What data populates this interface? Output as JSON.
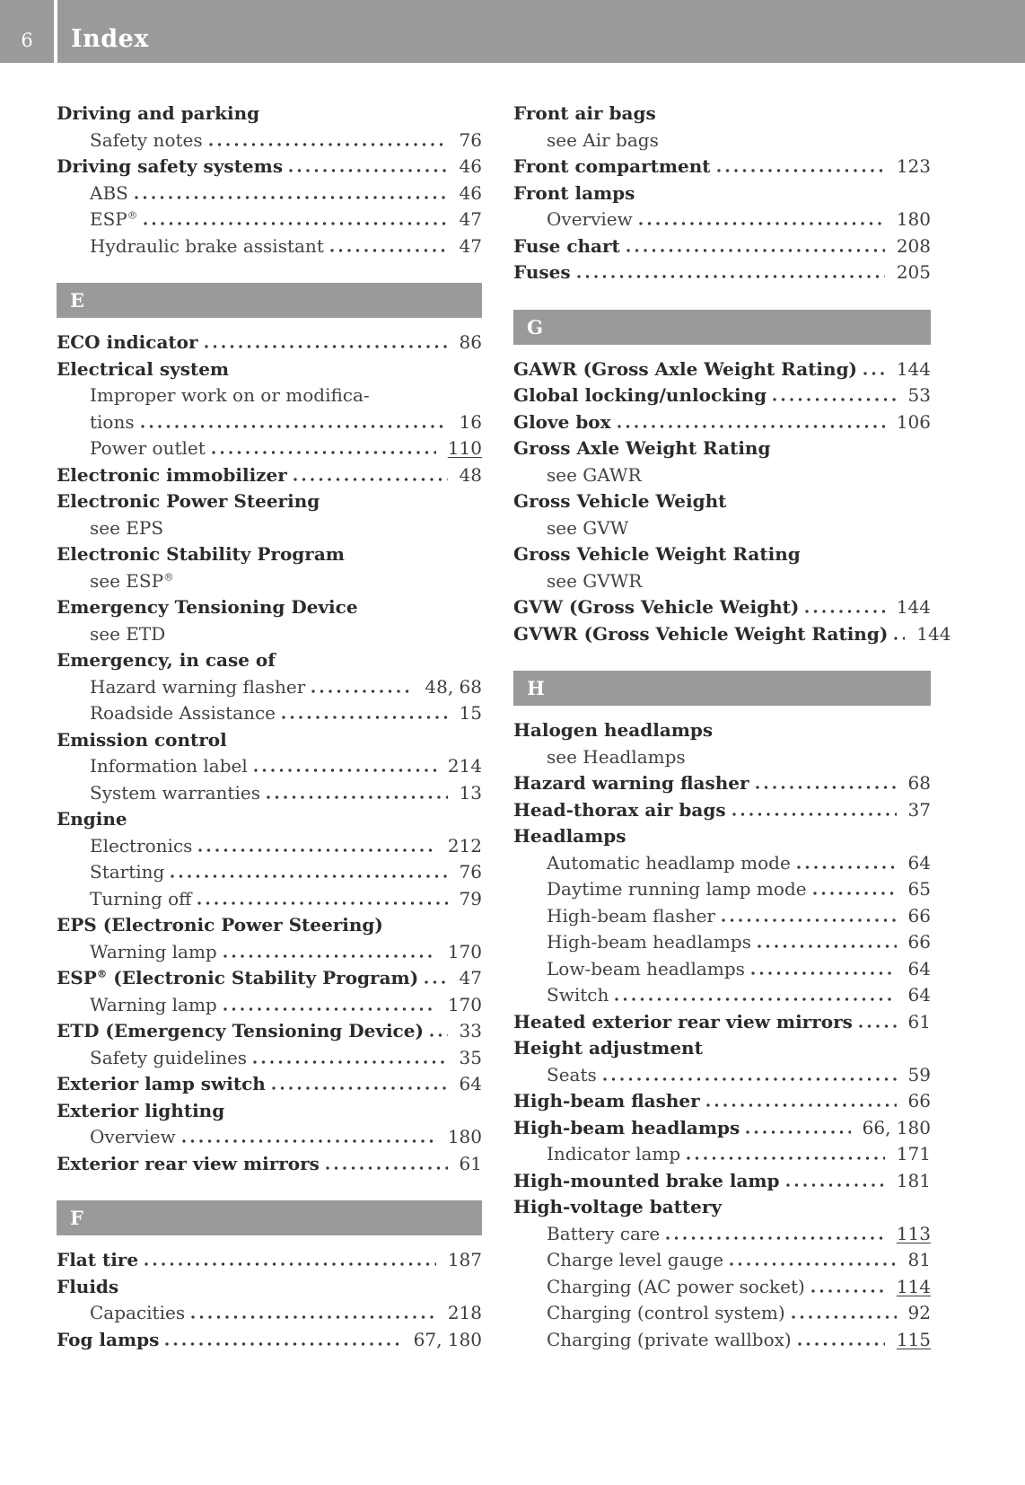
{
  "header": {
    "page_number": "6",
    "title": "Index"
  },
  "colors": {
    "bar_gray": "#9a9a9a",
    "text_bold": "#2b2b2b",
    "text_regular": "#424242"
  },
  "columns": {
    "left": [
      {
        "type": "entries",
        "items": [
          {
            "text": "Driving and parking",
            "bold": true
          },
          {
            "text": "Safety notes",
            "page": "76",
            "indent": true
          },
          {
            "text": "Driving safety systems",
            "page": "46",
            "bold": true
          },
          {
            "text": "ABS",
            "page": "46",
            "indent": true
          },
          {
            "text": "ESP®",
            "page": "47",
            "indent": true
          },
          {
            "text": "Hydraulic brake assistant",
            "page": "47",
            "indent": true
          }
        ]
      },
      {
        "type": "letter",
        "label": "E"
      },
      {
        "type": "entries",
        "items": [
          {
            "text": "ECO indicator",
            "page": "86",
            "bold": true
          },
          {
            "text": "Electrical system",
            "bold": true
          },
          {
            "text": "Improper work on or modifica-",
            "indent": true
          },
          {
            "text": "tions",
            "page": "16",
            "indent": true
          },
          {
            "text": "Power outlet",
            "page": "110",
            "indent": true,
            "u": true
          },
          {
            "text": "Electronic immobilizer",
            "page": "48",
            "bold": true
          },
          {
            "text": "Electronic Power Steering",
            "bold": true
          },
          {
            "text": "see EPS",
            "indent": true
          },
          {
            "text": "Electronic Stability Program",
            "bold": true
          },
          {
            "text": "see ESP®",
            "indent": true
          },
          {
            "text": "Emergency Tensioning Device",
            "bold": true
          },
          {
            "text": "see ETD",
            "indent": true
          },
          {
            "text": "Emergency, in case of",
            "bold": true
          },
          {
            "text": "Hazard warning flasher",
            "page": "48, 68",
            "indent": true
          },
          {
            "text": "Roadside Assistance",
            "page": "15",
            "indent": true
          },
          {
            "text": "Emission control",
            "bold": true
          },
          {
            "text": "Information label",
            "page": "214",
            "indent": true
          },
          {
            "text": "System warranties",
            "page": "13",
            "indent": true
          },
          {
            "text": "Engine",
            "bold": true
          },
          {
            "text": "Electronics",
            "page": "212",
            "indent": true
          },
          {
            "text": "Starting",
            "page": "76",
            "indent": true
          },
          {
            "text": "Turning off",
            "page": "79",
            "indent": true
          },
          {
            "text": "EPS (Electronic Power Steering)",
            "bold": true
          },
          {
            "text": "Warning lamp",
            "page": "170",
            "indent": true
          },
          {
            "text": "ESP® (Electronic Stability Program)",
            "page": "47",
            "bold": true
          },
          {
            "text": "Warning lamp",
            "page": "170",
            "indent": true
          },
          {
            "text": "ETD (Emergency Tensioning Device)",
            "page": "33",
            "bold": true
          },
          {
            "text": "Safety guidelines",
            "page": "35",
            "indent": true
          },
          {
            "text": "Exterior lamp switch",
            "page": "64",
            "bold": true
          },
          {
            "text": "Exterior lighting",
            "bold": true
          },
          {
            "text": "Overview",
            "page": "180",
            "indent": true
          },
          {
            "text": "Exterior rear view mirrors",
            "page": "61",
            "bold": true
          }
        ]
      },
      {
        "type": "letter",
        "label": "F"
      },
      {
        "type": "entries",
        "items": [
          {
            "text": "Flat tire",
            "page": "187",
            "bold": true
          },
          {
            "text": "Fluids",
            "bold": true
          },
          {
            "text": "Capacities",
            "page": "218",
            "indent": true
          },
          {
            "text": "Fog lamps",
            "page": "67, 180",
            "bold": true
          }
        ]
      }
    ],
    "right": [
      {
        "type": "entries",
        "items": [
          {
            "text": "Front air bags",
            "bold": true
          },
          {
            "text": "see Air bags",
            "indent": true
          },
          {
            "text": "Front compartment",
            "page": "123",
            "bold": true
          },
          {
            "text": "Front lamps",
            "bold": true
          },
          {
            "text": "Overview",
            "page": "180",
            "indent": true
          },
          {
            "text": "Fuse chart",
            "page": "208",
            "bold": true
          },
          {
            "text": "Fuses",
            "page": "205",
            "bold": true
          }
        ]
      },
      {
        "type": "letter",
        "label": "G"
      },
      {
        "type": "entries",
        "items": [
          {
            "text": "GAWR (Gross Axle Weight Rating)",
            "page": "144",
            "bold": true
          },
          {
            "text": "Global locking/unlocking",
            "page": "53",
            "bold": true
          },
          {
            "text": "Glove box",
            "page": "106",
            "bold": true
          },
          {
            "text": "Gross Axle Weight Rating",
            "bold": true
          },
          {
            "text": "see GAWR",
            "indent": true
          },
          {
            "text": "Gross Vehicle Weight",
            "bold": true
          },
          {
            "text": "see GVW",
            "indent": true
          },
          {
            "text": "Gross Vehicle Weight Rating",
            "bold": true
          },
          {
            "text": "see GVWR",
            "indent": true
          },
          {
            "text": "GVW (Gross Vehicle Weight)",
            "page": "144",
            "bold": true
          },
          {
            "text": "GVWR (Gross Vehicle Weight Rating)",
            "page": "144",
            "bold": true
          }
        ]
      },
      {
        "type": "letter",
        "label": "H"
      },
      {
        "type": "entries",
        "items": [
          {
            "text": "Halogen headlamps",
            "bold": true
          },
          {
            "text": "see Headlamps",
            "indent": true
          },
          {
            "text": "Hazard warning flasher",
            "page": "68",
            "bold": true
          },
          {
            "text": "Head-thorax air bags",
            "page": "37",
            "bold": true
          },
          {
            "text": "Headlamps",
            "bold": true
          },
          {
            "text": "Automatic headlamp mode",
            "page": "64",
            "indent": true
          },
          {
            "text": "Daytime running lamp mode",
            "page": "65",
            "indent": true
          },
          {
            "text": "High-beam flasher",
            "page": "66",
            "indent": true
          },
          {
            "text": "High-beam headlamps",
            "page": "66",
            "indent": true
          },
          {
            "text": "Low-beam headlamps",
            "page": "64",
            "indent": true
          },
          {
            "text": "Switch",
            "page": "64",
            "indent": true
          },
          {
            "text": "Heated exterior rear view mirrors",
            "page": "61",
            "bold": true
          },
          {
            "text": "Height adjustment",
            "bold": true
          },
          {
            "text": "Seats",
            "page": "59",
            "indent": true
          },
          {
            "text": "High-beam flasher",
            "page": "66",
            "bold": true
          },
          {
            "text": "High-beam headlamps",
            "page": "66, 180",
            "bold": true
          },
          {
            "text": "Indicator lamp",
            "page": "171",
            "indent": true
          },
          {
            "text": "High-mounted brake lamp",
            "page": "181",
            "bold": true
          },
          {
            "text": "High-voltage battery",
            "bold": true
          },
          {
            "text": "Battery care",
            "page": "113",
            "indent": true,
            "u": true
          },
          {
            "text": "Charge level gauge",
            "page": "81",
            "indent": true
          },
          {
            "text": "Charging (AC power socket)",
            "page": "114",
            "indent": true,
            "u": true
          },
          {
            "text": "Charging (control system)",
            "page": "92",
            "indent": true
          },
          {
            "text": "Charging (private wallbox)",
            "page": "115",
            "indent": true,
            "u": true
          }
        ]
      }
    ]
  }
}
